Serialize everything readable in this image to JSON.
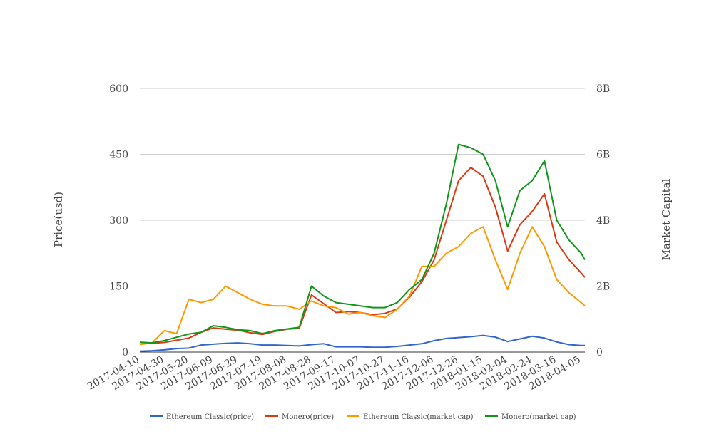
{
  "chart_data": {
    "type": "line",
    "title": "",
    "ylabel": "Price(usd)",
    "y2label": "Market Capital",
    "ylim": [
      0,
      600
    ],
    "y2lim": [
      0,
      8000000000
    ],
    "yticks": [
      "0",
      "150",
      "300",
      "450",
      "600"
    ],
    "y2ticks": [
      "0",
      "2B",
      "4B",
      "6B",
      "8B"
    ],
    "xticks": [
      "2017-04-10",
      "2017-04-30",
      "2017-05-20",
      "2017-06-09",
      "2017-06-29",
      "2017-07-19",
      "2017-08-08",
      "2017-08-28",
      "2017-09-17",
      "2017-10-07",
      "2017-10-27",
      "2017-11-16",
      "2017-12-06",
      "2017-12-26",
      "2018-01-15",
      "2018-02-04",
      "2018-02-24",
      "2018-03-16",
      "2018-04-05"
    ],
    "x": [
      "2017-04-10",
      "2017-04-20",
      "2017-04-30",
      "2017-05-10",
      "2017-05-20",
      "2017-05-30",
      "2017-06-09",
      "2017-06-19",
      "2017-06-29",
      "2017-07-09",
      "2017-07-19",
      "2017-07-29",
      "2017-08-08",
      "2017-08-18",
      "2017-08-28",
      "2017-09-07",
      "2017-09-17",
      "2017-09-27",
      "2017-10-07",
      "2017-10-17",
      "2017-10-27",
      "2017-11-06",
      "2017-11-16",
      "2017-11-26",
      "2017-12-06",
      "2017-12-16",
      "2017-12-26",
      "2018-01-05",
      "2018-01-15",
      "2018-01-25",
      "2018-02-04",
      "2018-02-14",
      "2018-02-24",
      "2018-03-06",
      "2018-03-16",
      "2018-03-26",
      "2018-04-05",
      "2018-04-08"
    ],
    "legend_position": "bottom",
    "grid": true,
    "series": [
      {
        "name": "Ethereum Classic(price)",
        "axis": "left",
        "color": "#3366cc",
        "values": [
          2,
          3,
          5,
          8,
          9,
          16,
          18,
          20,
          21,
          19,
          16,
          16,
          15,
          14,
          17,
          19,
          12,
          12,
          12,
          11,
          11,
          13,
          16,
          19,
          26,
          31,
          33,
          35,
          38,
          34,
          24,
          30,
          36,
          32,
          23,
          17,
          15,
          15
        ]
      },
      {
        "name": "Monero(price)",
        "axis": "left",
        "color": "#dc3912",
        "values": [
          22,
          20,
          22,
          27,
          32,
          45,
          55,
          52,
          50,
          44,
          40,
          47,
          52,
          54,
          130,
          110,
          90,
          92,
          90,
          85,
          88,
          98,
          125,
          160,
          210,
          300,
          390,
          420,
          400,
          330,
          230,
          290,
          320,
          360,
          250,
          210,
          180,
          170
        ]
      },
      {
        "name": "Ethereum Classic(market cap)",
        "axis": "right",
        "color": "#ff9900",
        "values": [
          230000000,
          280000000,
          650000000,
          560000000,
          1600000000,
          1500000000,
          1600000000,
          2000000000,
          1800000000,
          1600000000,
          1450000000,
          1400000000,
          1400000000,
          1300000000,
          1550000000,
          1400000000,
          1350000000,
          1150000000,
          1200000000,
          1100000000,
          1050000000,
          1300000000,
          1700000000,
          2600000000,
          2600000000,
          3000000000,
          3200000000,
          3600000000,
          3800000000,
          2800000000,
          1900000000,
          3000000000,
          3800000000,
          3200000000,
          2200000000,
          1800000000,
          1500000000,
          1400000000
        ]
      },
      {
        "name": "Monero(market cap)",
        "axis": "right",
        "color": "#109618",
        "values": [
          300000000,
          280000000,
          350000000,
          450000000,
          550000000,
          600000000,
          800000000,
          750000000,
          680000000,
          650000000,
          560000000,
          650000000,
          700000000,
          750000000,
          2000000000,
          1700000000,
          1500000000,
          1450000000,
          1400000000,
          1350000000,
          1350000000,
          1500000000,
          1900000000,
          2200000000,
          3000000000,
          4500000000,
          6300000000,
          6200000000,
          6000000000,
          5200000000,
          3800000000,
          4900000000,
          5200000000,
          5800000000,
          4000000000,
          3400000000,
          3000000000,
          2800000000
        ]
      }
    ]
  }
}
